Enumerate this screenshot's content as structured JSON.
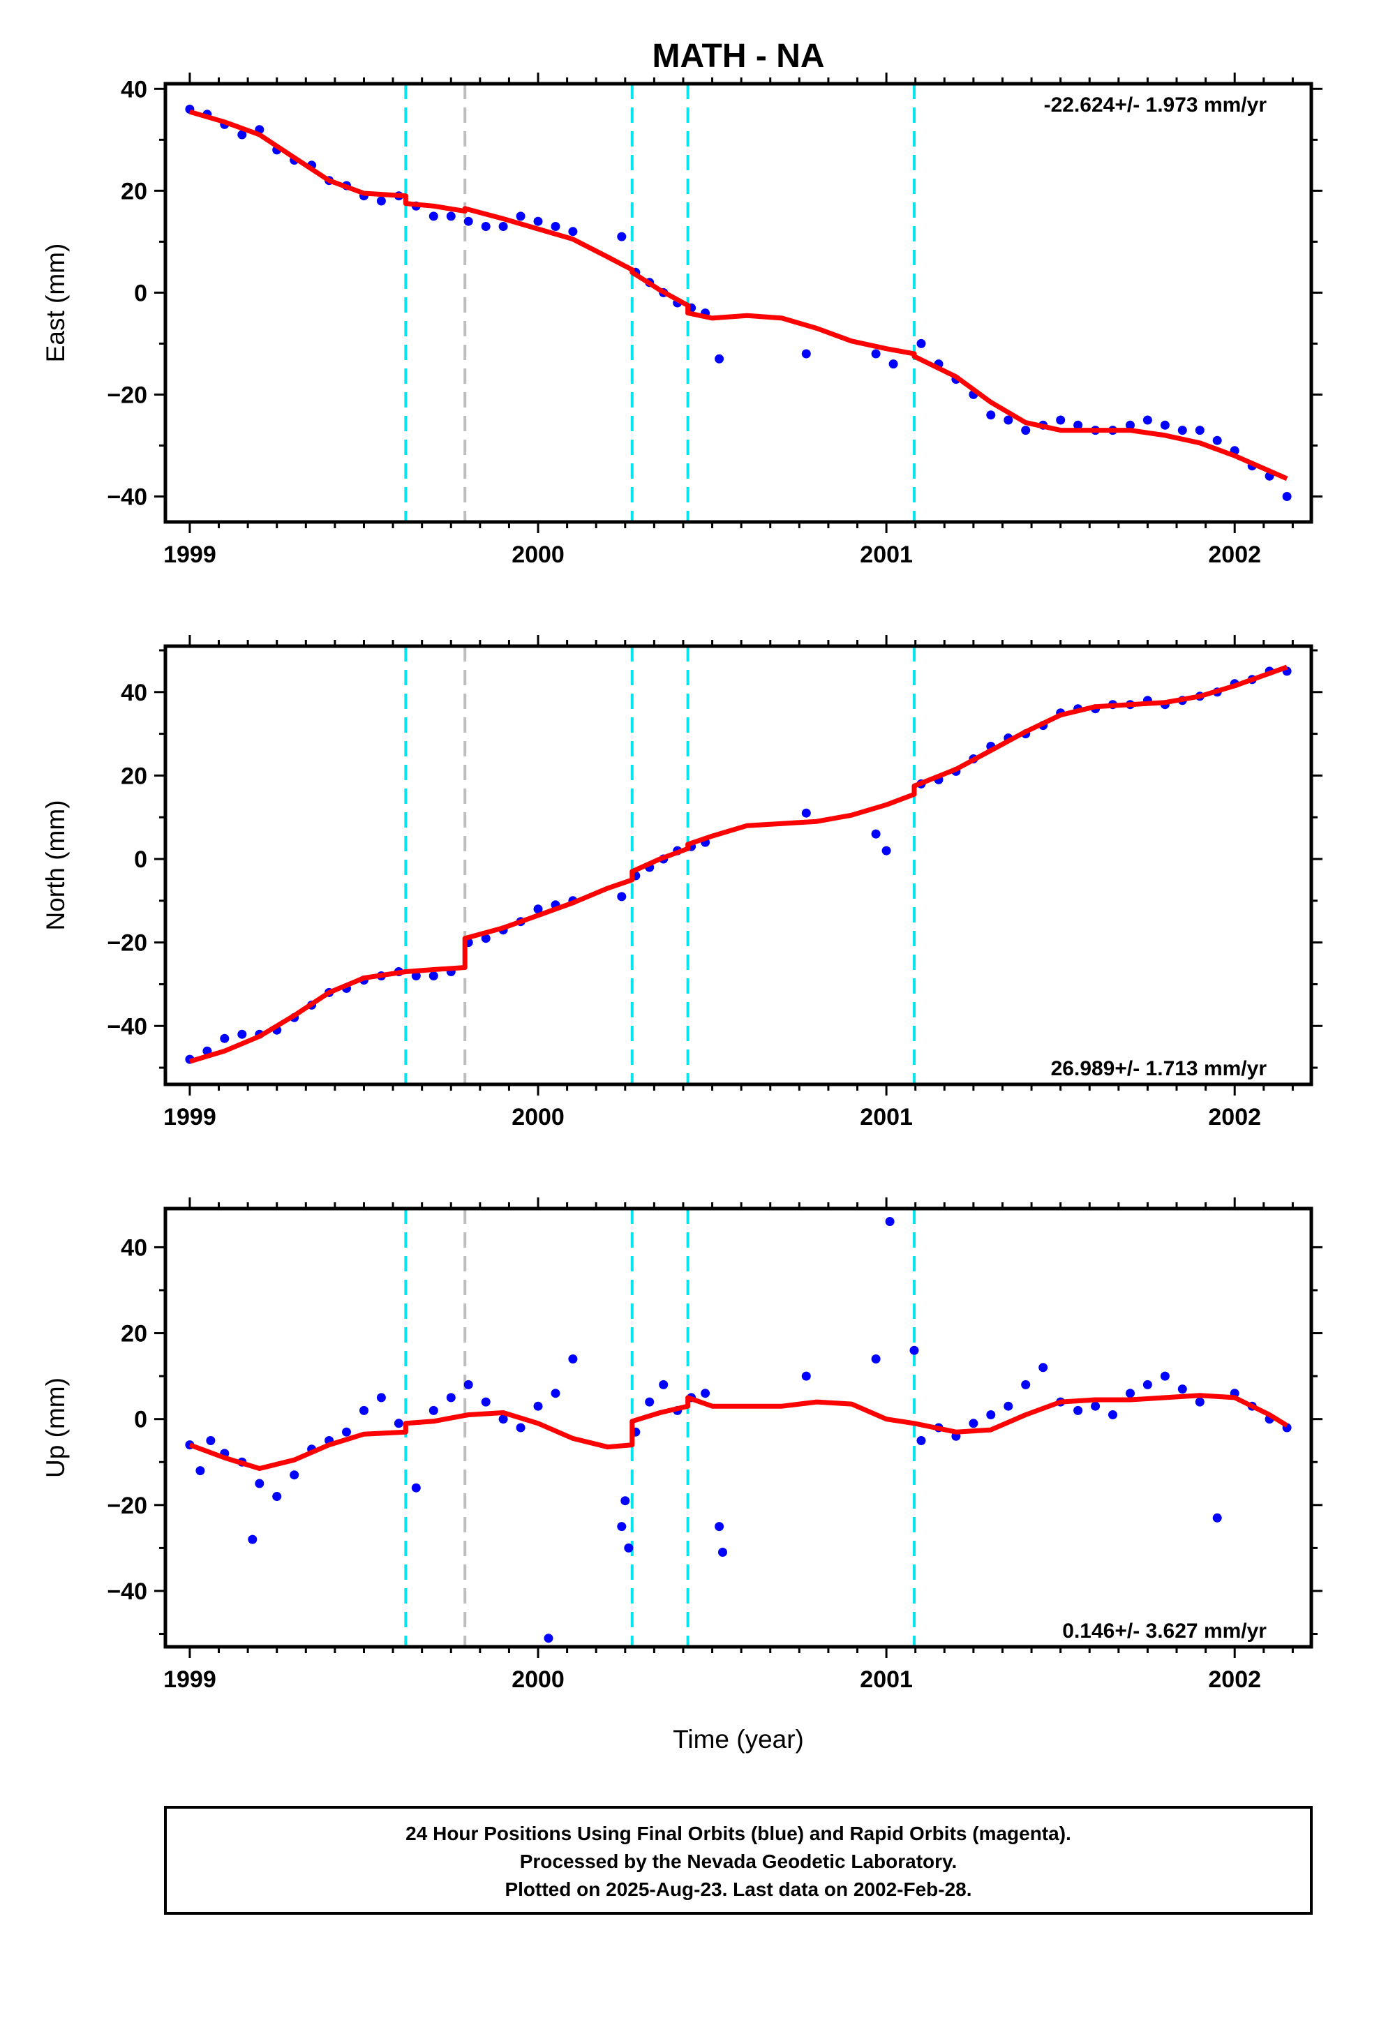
{
  "title": "MATH - NA",
  "xlabel": "Time (year)",
  "footer": {
    "line1": "24 Hour Positions Using Final Orbits (blue) and Rapid Orbits (magenta).",
    "line2": "Processed by the Nevada Geodetic Laboratory.",
    "line3": "Plotted on 2025-Aug-23. Last data on 2002-Feb-28."
  },
  "colors": {
    "final_orbits": "#0000ff",
    "model": "#ff0000",
    "equipment_change": "#00e5ee",
    "other_event": "#bebebe"
  },
  "chart_data": [
    {
      "type": "scatter",
      "component": "east",
      "ylabel": "East (mm)",
      "rate_label": "-22.624+/- 1.973 mm/yr",
      "xlim": [
        1998.93,
        2002.22
      ],
      "ylim": [
        -45,
        41
      ],
      "x_ticks": [
        1999,
        2000,
        2001,
        2002
      ],
      "y_ticks": [
        -40,
        -20,
        0,
        20,
        40
      ],
      "y_tick_labels": [
        "−40",
        "−20",
        "0",
        "20",
        "40"
      ],
      "offset_events": [
        1999.62,
        2000.27,
        2000.43,
        2001.08
      ],
      "other_events": [
        1999.79
      ],
      "series": [
        {
          "name": "24 Hour Positions Using Final Orbits",
          "x": [
            1999.0,
            1999.05,
            1999.1,
            1999.15,
            1999.2,
            1999.25,
            1999.3,
            1999.35,
            1999.4,
            1999.45,
            1999.5,
            1999.55,
            1999.6,
            1999.65,
            1999.7,
            1999.75,
            1999.8,
            1999.85,
            1999.9,
            1999.95,
            2000.0,
            2000.05,
            2000.1,
            2000.24,
            2000.28,
            2000.32,
            2000.36,
            2000.4,
            2000.44,
            2000.48,
            2000.52,
            2000.77,
            2000.97,
            2001.02,
            2001.1,
            2001.15,
            2001.2,
            2001.25,
            2001.3,
            2001.35,
            2001.4,
            2001.45,
            2001.5,
            2001.55,
            2001.6,
            2001.65,
            2001.7,
            2001.75,
            2001.8,
            2001.85,
            2001.9,
            2001.95,
            2002.0,
            2002.05,
            2002.1,
            2002.15
          ],
          "y": [
            36,
            35,
            33,
            31,
            32,
            28,
            26,
            25,
            22,
            21,
            19,
            18,
            19,
            17,
            15,
            15,
            14,
            13,
            13,
            15,
            14,
            13,
            12,
            11,
            4,
            2,
            0,
            -2,
            -3,
            -4,
            -13,
            -12,
            -12,
            -14,
            -10,
            -14,
            -17,
            -20,
            -24,
            -25,
            -27,
            -26,
            -25,
            -26,
            -27,
            -27,
            -26,
            -25,
            -26,
            -27,
            -27,
            -29,
            -31,
            -34,
            -36,
            -40
          ]
        },
        {
          "name": "model",
          "x": [
            1999.0,
            1999.1,
            1999.2,
            1999.3,
            1999.4,
            1999.5,
            1999.62,
            1999.62,
            1999.7,
            1999.79,
            1999.79,
            1999.9,
            2000.0,
            2000.1,
            2000.2,
            2000.27,
            2000.27,
            2000.35,
            2000.43,
            2000.43,
            2000.5,
            2000.6,
            2000.7,
            2000.8,
            2000.9,
            2001.0,
            2001.08,
            2001.08,
            2001.2,
            2001.3,
            2001.4,
            2001.5,
            2001.6,
            2001.7,
            2001.8,
            2001.9,
            2002.0,
            2002.1,
            2002.15
          ],
          "y": [
            35.5,
            33.5,
            31,
            26.5,
            22,
            19.5,
            19,
            17.5,
            17,
            16,
            16.5,
            14.5,
            12.5,
            10.5,
            7,
            4.5,
            4,
            0.5,
            -2.5,
            -4,
            -5,
            -4.5,
            -5,
            -7,
            -9.5,
            -11,
            -12,
            -12.5,
            -16.5,
            -21.5,
            -25.5,
            -27,
            -27,
            -27,
            -28,
            -29.5,
            -32,
            -35,
            -36.5
          ]
        }
      ]
    },
    {
      "type": "scatter",
      "component": "north",
      "ylabel": "North (mm)",
      "rate_label": "26.989+/- 1.713 mm/yr",
      "xlim": [
        1998.93,
        2002.22
      ],
      "ylim": [
        -54,
        51
      ],
      "x_ticks": [
        1999,
        2000,
        2001,
        2002
      ],
      "y_ticks": [
        -40,
        -20,
        0,
        20,
        40
      ],
      "y_tick_labels": [
        "−40",
        "−20",
        "0",
        "20",
        "40"
      ],
      "offset_events": [
        1999.62,
        2000.27,
        2000.43,
        2001.08
      ],
      "other_events": [
        1999.79
      ],
      "series": [
        {
          "name": "24 Hour Positions Using Final Orbits",
          "x": [
            1999.0,
            1999.05,
            1999.1,
            1999.15,
            1999.2,
            1999.25,
            1999.3,
            1999.35,
            1999.4,
            1999.45,
            1999.5,
            1999.55,
            1999.6,
            1999.65,
            1999.7,
            1999.75,
            1999.8,
            1999.85,
            1999.9,
            1999.95,
            2000.0,
            2000.05,
            2000.1,
            2000.24,
            2000.28,
            2000.32,
            2000.36,
            2000.4,
            2000.44,
            2000.48,
            2000.77,
            2000.97,
            2001.0,
            2001.1,
            2001.15,
            2001.2,
            2001.25,
            2001.3,
            2001.35,
            2001.4,
            2001.45,
            2001.5,
            2001.55,
            2001.6,
            2001.65,
            2001.7,
            2001.75,
            2001.8,
            2001.85,
            2001.9,
            2001.95,
            2002.0,
            2002.05,
            2002.1,
            2002.15
          ],
          "y": [
            -48,
            -46,
            -43,
            -42,
            -42,
            -41,
            -38,
            -35,
            -32,
            -31,
            -29,
            -28,
            -27,
            -28,
            -28,
            -27,
            -20,
            -19,
            -17,
            -15,
            -12,
            -11,
            -10,
            -9,
            -4,
            -2,
            0,
            2,
            3,
            4,
            11,
            6,
            2,
            18,
            19,
            21,
            24,
            27,
            29,
            30,
            32,
            35,
            36,
            36,
            37,
            37,
            38,
            37,
            38,
            39,
            40,
            42,
            43,
            45,
            45
          ]
        },
        {
          "name": "model",
          "x": [
            1999.0,
            1999.1,
            1999.2,
            1999.3,
            1999.4,
            1999.5,
            1999.62,
            1999.7,
            1999.79,
            1999.79,
            1999.9,
            2000.0,
            2000.1,
            2000.2,
            2000.27,
            2000.27,
            2000.35,
            2000.43,
            2000.43,
            2000.5,
            2000.6,
            2000.7,
            2000.8,
            2000.9,
            2001.0,
            2001.08,
            2001.08,
            2001.2,
            2001.3,
            2001.4,
            2001.5,
            2001.6,
            2001.7,
            2001.8,
            2001.9,
            2002.0,
            2002.1,
            2002.15
          ],
          "y": [
            -48.5,
            -46,
            -42.5,
            -37.5,
            -32,
            -28.5,
            -27,
            -26.5,
            -26,
            -19,
            -16.5,
            -13.5,
            -10.5,
            -7,
            -5,
            -3,
            0,
            2.5,
            3.5,
            5.5,
            8,
            8.5,
            9,
            10.5,
            13,
            15.5,
            17.5,
            21.5,
            26,
            30.5,
            34.5,
            36.5,
            37,
            37.5,
            39,
            41.5,
            44.5,
            46
          ]
        }
      ]
    },
    {
      "type": "scatter",
      "component": "up",
      "ylabel": "Up (mm)",
      "rate_label": "0.146+/- 3.627 mm/yr",
      "xlim": [
        1998.93,
        2002.22
      ],
      "ylim": [
        -53,
        49
      ],
      "x_ticks": [
        1999,
        2000,
        2001,
        2002
      ],
      "y_ticks": [
        -40,
        -20,
        0,
        20,
        40
      ],
      "y_tick_labels": [
        "−40",
        "−20",
        "0",
        "20",
        "40"
      ],
      "offset_events": [
        1999.62,
        2000.27,
        2000.43,
        2001.08
      ],
      "other_events": [
        1999.79
      ],
      "series": [
        {
          "name": "24 Hour Positions Using Final Orbits",
          "x": [
            1999.0,
            1999.03,
            1999.06,
            1999.1,
            1999.15,
            1999.18,
            1999.2,
            1999.25,
            1999.3,
            1999.35,
            1999.4,
            1999.45,
            1999.5,
            1999.55,
            1999.6,
            1999.65,
            1999.7,
            1999.75,
            1999.8,
            1999.85,
            1999.9,
            1999.95,
            2000.0,
            2000.03,
            2000.05,
            2000.1,
            2000.24,
            2000.25,
            2000.26,
            2000.28,
            2000.32,
            2000.36,
            2000.4,
            2000.44,
            2000.48,
            2000.52,
            2000.53,
            2000.77,
            2000.97,
            2001.01,
            2001.08,
            2001.1,
            2001.15,
            2001.2,
            2001.25,
            2001.3,
            2001.35,
            2001.4,
            2001.45,
            2001.5,
            2001.55,
            2001.6,
            2001.65,
            2001.7,
            2001.75,
            2001.8,
            2001.85,
            2001.9,
            2001.95,
            2002.0,
            2002.05,
            2002.1,
            2002.15
          ],
          "y": [
            -6,
            -12,
            -5,
            -8,
            -10,
            -28,
            -15,
            -18,
            -13,
            -7,
            -5,
            -3,
            2,
            5,
            -1,
            -16,
            2,
            5,
            8,
            4,
            0,
            -2,
            3,
            -51,
            6,
            14,
            -25,
            -19,
            -30,
            -3,
            4,
            8,
            2,
            5,
            6,
            -25,
            -31,
            10,
            14,
            46,
            16,
            -5,
            -2,
            -4,
            -1,
            1,
            3,
            8,
            12,
            4,
            2,
            3,
            1,
            6,
            8,
            10,
            7,
            4,
            -23,
            6,
            3,
            0,
            -2
          ]
        },
        {
          "name": "model",
          "x": [
            1999.0,
            1999.1,
            1999.2,
            1999.3,
            1999.4,
            1999.5,
            1999.62,
            1999.62,
            1999.7,
            1999.8,
            1999.9,
            2000.0,
            2000.1,
            2000.2,
            2000.27,
            2000.27,
            2000.35,
            2000.43,
            2000.43,
            2000.5,
            2000.6,
            2000.7,
            2000.8,
            2000.9,
            2001.0,
            2001.08,
            2001.2,
            2001.3,
            2001.4,
            2001.5,
            2001.6,
            2001.7,
            2001.8,
            2001.9,
            2002.0,
            2002.1,
            2002.15
          ],
          "y": [
            -6,
            -9,
            -11.5,
            -9.5,
            -6,
            -3.5,
            -3,
            -1,
            -0.5,
            1,
            1.5,
            -1,
            -4.5,
            -6.5,
            -6,
            -0.5,
            1.5,
            3,
            5,
            3,
            3,
            3,
            4,
            3.5,
            0,
            -1,
            -3,
            -2.5,
            1,
            4,
            4.5,
            4.5,
            5,
            5.5,
            5,
            1,
            -1.5
          ]
        }
      ]
    }
  ]
}
